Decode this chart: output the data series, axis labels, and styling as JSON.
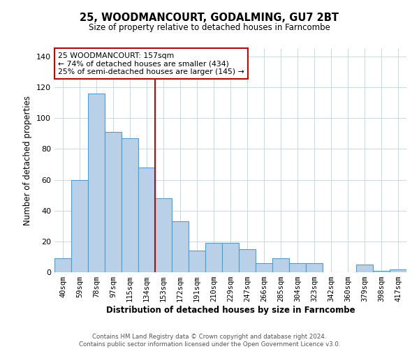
{
  "title_line1": "25, WOODMANCOURT, GODALMING, GU7 2BT",
  "title_line2": "Size of property relative to detached houses in Farncombe",
  "xlabel": "Distribution of detached houses by size in Farncombe",
  "ylabel": "Number of detached properties",
  "categories": [
    "40sqm",
    "59sqm",
    "78sqm",
    "97sqm",
    "115sqm",
    "134sqm",
    "153sqm",
    "172sqm",
    "191sqm",
    "210sqm",
    "229sqm",
    "247sqm",
    "266sqm",
    "285sqm",
    "304sqm",
    "323sqm",
    "342sqm",
    "360sqm",
    "379sqm",
    "398sqm",
    "417sqm"
  ],
  "values": [
    9,
    60,
    116,
    91,
    87,
    68,
    48,
    33,
    14,
    19,
    19,
    15,
    6,
    9,
    6,
    6,
    0,
    0,
    5,
    1,
    2
  ],
  "bar_color": "#b8d0e8",
  "bar_edge_color": "#5a9ac8",
  "vline_x": 5.5,
  "vline_color": "#cc0000",
  "annotation_text": "25 WOODMANCOURT: 157sqm\n← 74% of detached houses are smaller (434)\n25% of semi-detached houses are larger (145) →",
  "annotation_box_edge_color": "#cc0000",
  "ylim": [
    0,
    145
  ],
  "yticks": [
    0,
    20,
    40,
    60,
    80,
    100,
    120,
    140
  ],
  "footer_line1": "Contains HM Land Registry data © Crown copyright and database right 2024.",
  "footer_line2": "Contains public sector information licensed under the Open Government Licence v3.0.",
  "background_color": "#ffffff",
  "grid_color": "#c8d8e8"
}
